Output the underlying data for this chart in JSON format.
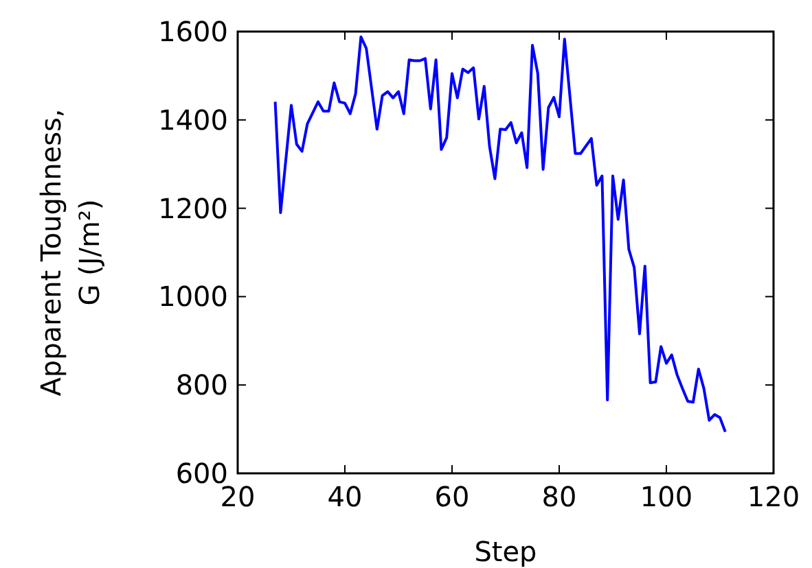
{
  "chart_data": {
    "type": "line",
    "xlabel": "Step",
    "ylabel": "Apparent Toughness,\nG (J/m²)",
    "xlim": [
      20,
      120
    ],
    "ylim": [
      600,
      1600
    ],
    "xticks": [
      20,
      40,
      60,
      80,
      100,
      120
    ],
    "yticks": [
      600,
      800,
      1000,
      1200,
      1400,
      1600
    ],
    "grid": false,
    "marker": "none",
    "line_style": "solid",
    "series": [
      {
        "color": "#0000ff",
        "x": [
          27,
          28,
          30,
          31,
          32,
          33,
          35,
          36,
          37,
          38,
          39,
          40,
          41,
          42,
          43,
          44,
          46,
          47,
          48,
          49,
          50,
          51,
          52,
          53,
          54,
          55,
          56,
          57,
          58,
          59,
          60,
          61,
          62,
          63,
          64,
          65,
          66,
          67,
          68,
          69,
          70,
          71,
          72,
          73,
          74,
          75,
          76,
          77,
          78,
          79,
          80,
          81,
          83,
          84,
          86,
          87,
          88,
          89,
          90,
          91,
          92,
          93,
          94,
          95,
          96,
          97,
          98,
          99,
          100,
          101,
          102,
          103,
          104,
          105,
          106,
          107,
          108,
          109,
          110,
          111
        ],
        "values": [
          1441,
          1190,
          1433,
          1345,
          1329,
          1391,
          1441,
          1420,
          1420,
          1484,
          1441,
          1438,
          1414,
          1459,
          1588,
          1562,
          1379,
          1455,
          1464,
          1450,
          1464,
          1414,
          1536,
          1534,
          1534,
          1539,
          1425,
          1536,
          1333,
          1360,
          1505,
          1450,
          1515,
          1507,
          1518,
          1402,
          1476,
          1340,
          1267,
          1379,
          1378,
          1394,
          1348,
          1371,
          1292,
          1569,
          1505,
          1288,
          1428,
          1451,
          1407,
          1583,
          1324,
          1324,
          1358,
          1252,
          1273,
          766,
          1273,
          1175,
          1264,
          1107,
          1066,
          916,
          1069,
          805,
          807,
          887,
          849,
          868,
          823,
          792,
          763,
          761,
          836,
          792,
          720,
          733,
          726,
          694
        ]
      }
    ]
  }
}
